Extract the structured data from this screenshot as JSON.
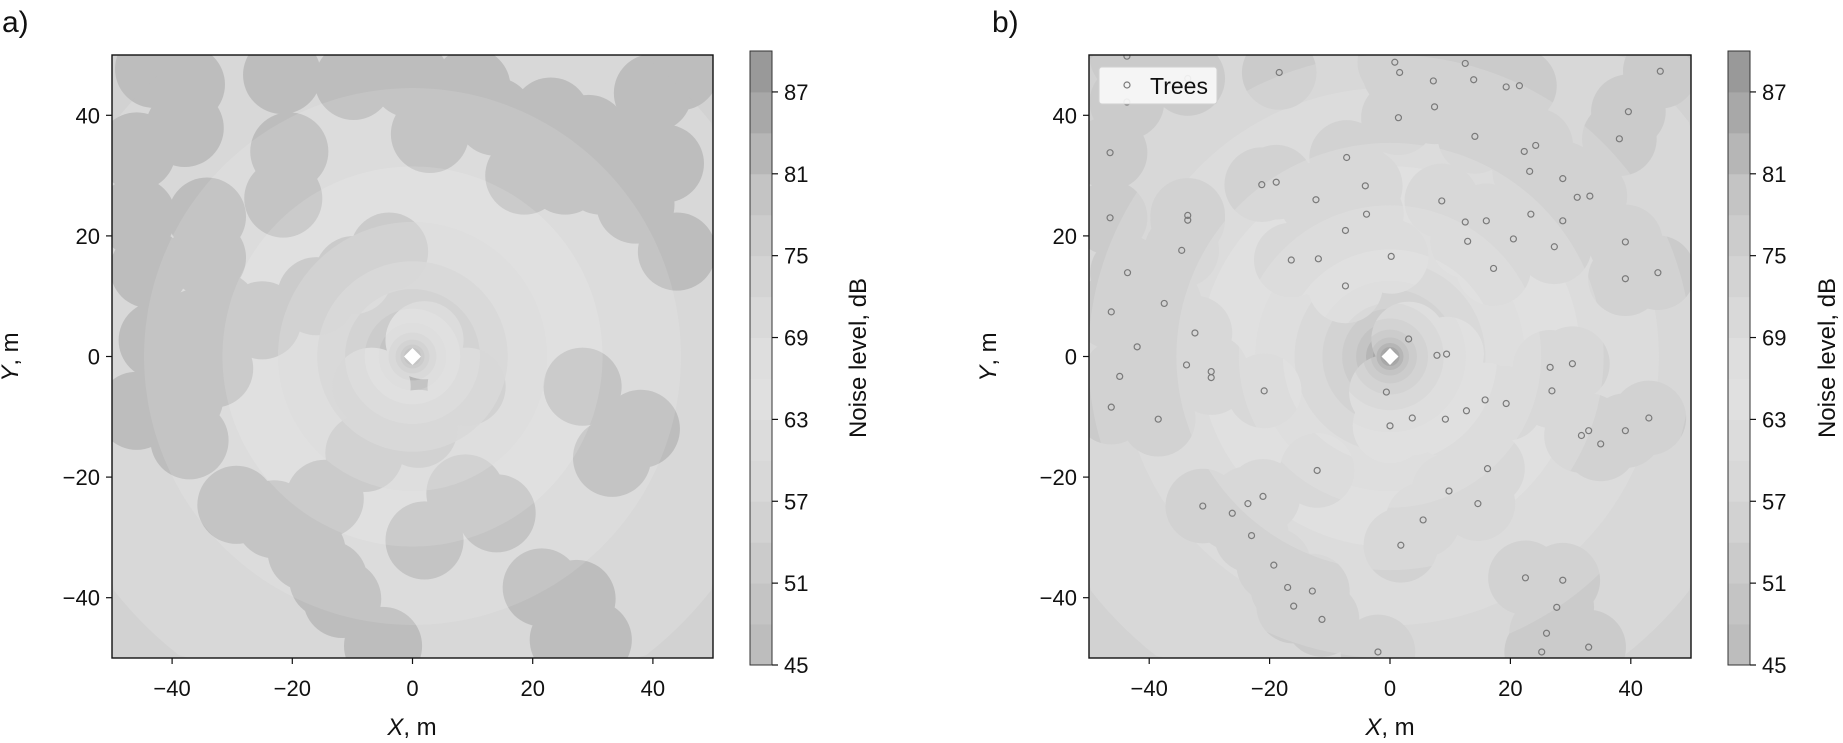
{
  "chart_data": [
    {
      "type": "heatmap",
      "panel_label": "a)",
      "xlabel": {
        "var": "X",
        "unit": ", m"
      },
      "ylabel": {
        "var": "Y",
        "unit": ", m"
      },
      "xlim": [
        -50,
        50
      ],
      "ylim": [
        -50,
        50
      ],
      "xticks": [
        -40,
        -20,
        0,
        20,
        40
      ],
      "yticks": [
        -40,
        -20,
        0,
        20,
        40
      ],
      "colorbar": {
        "label": "Noise level, dB",
        "range": [
          45,
          90
        ],
        "step": 3,
        "ticks": [
          45,
          51,
          57,
          63,
          69,
          75,
          81,
          87
        ],
        "band_colors": [
          "#bdbdbd",
          "#c4c4c4",
          "#cbcbcb",
          "#d2d2d2",
          "#d8d8d8",
          "#dcdcdc",
          "#e0e0e0",
          "#dedede",
          "#d9d9d9",
          "#d3d3d3",
          "#cccccc",
          "#c4c4c4",
          "#b6b6b6",
          "#a8a8a8",
          "#999999"
        ]
      },
      "source": {
        "x": 0,
        "y": 0
      },
      "canopy_attenuation_db": 12,
      "canopy_radius_m": 6.5,
      "canopy_centers": [
        [
          -43,
          47.7
        ],
        [
          -37.7,
          45.1
        ],
        [
          -37.9,
          37.9
        ],
        [
          -21.7,
          46.7
        ],
        [
          -9.8,
          45.7
        ],
        [
          -0.4,
          46.1
        ],
        [
          9.8,
          44.7
        ],
        [
          13.7,
          39.8
        ],
        [
          2.9,
          36.9
        ],
        [
          23,
          39.8
        ],
        [
          29.3,
          36.9
        ],
        [
          40,
          43.7
        ],
        [
          44.5,
          47.3
        ],
        [
          42,
          32
        ],
        [
          33.2,
          34
        ],
        [
          37.1,
          25.2
        ],
        [
          44,
          17.4
        ],
        [
          31.3,
          30
        ],
        [
          25.4,
          30
        ],
        [
          18.6,
          30
        ],
        [
          -45.9,
          34
        ],
        [
          -45.9,
          23.2
        ],
        [
          -43.8,
          14.5
        ],
        [
          -42.4,
          2.7
        ],
        [
          -45.9,
          -9
        ],
        [
          -38,
          -7
        ],
        [
          -34.2,
          16.4
        ],
        [
          -34.2,
          23.2
        ],
        [
          -32.2,
          7.6
        ],
        [
          -37.1,
          -13.9
        ],
        [
          -36,
          4.7
        ],
        [
          -21.5,
          26.2
        ],
        [
          -20.5,
          34
        ],
        [
          -9.8,
          13.5
        ],
        [
          -3.9,
          17.4
        ],
        [
          2,
          2.7
        ],
        [
          9,
          -5
        ],
        [
          -6.8,
          -5
        ],
        [
          1,
          -12
        ],
        [
          28.3,
          -5
        ],
        [
          33.2,
          -16.8
        ],
        [
          38,
          -12
        ],
        [
          2,
          -30.5
        ],
        [
          8.8,
          -22.7
        ],
        [
          14,
          -26
        ],
        [
          -29.3,
          -24.6
        ],
        [
          -23,
          -27
        ],
        [
          -17.6,
          -32.4
        ],
        [
          -14,
          -37
        ],
        [
          -11.7,
          -40.2
        ],
        [
          -4.9,
          -48
        ],
        [
          21.5,
          -38.3
        ],
        [
          27.3,
          -40.2
        ],
        [
          26,
          -47
        ],
        [
          30,
          -47
        ],
        [
          -14.6,
          -23.6
        ],
        [
          -33,
          -2
        ],
        [
          -8,
          -16
        ],
        [
          -25,
          6
        ],
        [
          -16,
          10
        ]
      ]
    },
    {
      "type": "heatmap",
      "panel_label": "b)",
      "xlabel": {
        "var": "X",
        "unit": ", m"
      },
      "ylabel": {
        "var": "Y",
        "unit": ", m"
      },
      "xlim": [
        -50,
        50
      ],
      "ylim": [
        -50,
        50
      ],
      "xticks": [
        -40,
        -20,
        0,
        20,
        40
      ],
      "yticks": [
        -40,
        -20,
        0,
        20,
        40
      ],
      "colorbar": {
        "label": "Noise level, dB",
        "range": [
          45,
          90
        ],
        "step": 3,
        "ticks": [
          45,
          51,
          57,
          63,
          69,
          75,
          81,
          87
        ],
        "band_colors": [
          "#bdbdbd",
          "#c4c4c4",
          "#cbcbcb",
          "#d2d2d2",
          "#d8d8d8",
          "#dcdcdc",
          "#e0e0e0",
          "#dedede",
          "#d9d9d9",
          "#d3d3d3",
          "#cccccc",
          "#c4c4c4",
          "#b6b6b6",
          "#a8a8a8",
          "#999999"
        ]
      },
      "source": {
        "x": 0,
        "y": 0
      },
      "canopy_attenuation_db": 5,
      "canopy_radius_m": 6.2,
      "legend": {
        "label": "Trees",
        "placement": "top-left"
      },
      "trees": [
        [
          -43.7,
          49.8
        ],
        [
          -43.7,
          42.2
        ],
        [
          -33.6,
          46.1
        ],
        [
          -18.4,
          47.1
        ],
        [
          0.8,
          48.8
        ],
        [
          1.6,
          47.1
        ],
        [
          7.2,
          45.7
        ],
        [
          12.5,
          48.6
        ],
        [
          13.9,
          45.9
        ],
        [
          19.3,
          44.7
        ],
        [
          21.5,
          44.9
        ],
        [
          44.9,
          47.3
        ],
        [
          1.4,
          39.6
        ],
        [
          7.4,
          41.4
        ],
        [
          14.1,
          36.5
        ],
        [
          39.6,
          40.6
        ],
        [
          38.1,
          36.1
        ],
        [
          -46.5,
          33.8
        ],
        [
          -7.2,
          33.0
        ],
        [
          -4.1,
          28.3
        ],
        [
          -3.9,
          23.6
        ],
        [
          -7.4,
          20.9
        ],
        [
          24.2,
          35.0
        ],
        [
          22.3,
          34.0
        ],
        [
          23.2,
          30.7
        ],
        [
          28.7,
          29.5
        ],
        [
          31.1,
          26.4
        ],
        [
          33.2,
          26.6
        ],
        [
          28.7,
          22.5
        ],
        [
          -21.3,
          28.5
        ],
        [
          -18.9,
          28.9
        ],
        [
          -12.3,
          26.0
        ],
        [
          8.6,
          25.8
        ],
        [
          12.5,
          22.3
        ],
        [
          16.0,
          22.5
        ],
        [
          12.9,
          19.1
        ],
        [
          20.5,
          19.5
        ],
        [
          23.4,
          23.6
        ],
        [
          -46.5,
          23.0
        ],
        [
          -33.6,
          23.4
        ],
        [
          -33.6,
          22.6
        ],
        [
          -34.6,
          17.6
        ],
        [
          -16.4,
          16.0
        ],
        [
          -11.9,
          16.2
        ],
        [
          0.2,
          16.6
        ],
        [
          -7.4,
          11.7
        ],
        [
          17.2,
          14.6
        ],
        [
          27.3,
          18.2
        ],
        [
          39.1,
          19.0
        ],
        [
          39.1,
          12.9
        ],
        [
          44.5,
          13.9
        ],
        [
          -43.6,
          13.9
        ],
        [
          -46.3,
          7.4
        ],
        [
          -37.5,
          8.8
        ],
        [
          -32.4,
          3.9
        ],
        [
          -42.0,
          1.6
        ],
        [
          -44.9,
          -3.3
        ],
        [
          -46.3,
          -8.4
        ],
        [
          -29.7,
          -2.5
        ],
        [
          -29.7,
          -3.5
        ],
        [
          -33.8,
          -1.4
        ],
        [
          -38.5,
          -10.4
        ],
        [
          -20.9,
          -5.7
        ],
        [
          3.1,
          2.9
        ],
        [
          7.8,
          0.2
        ],
        [
          9.4,
          0.4
        ],
        [
          -0.6,
          -5.9
        ],
        [
          0,
          -11.5
        ],
        [
          3.7,
          -10.2
        ],
        [
          9.2,
          -10.4
        ],
        [
          12.7,
          -9.0
        ],
        [
          15.8,
          -7.2
        ],
        [
          19.3,
          -7.8
        ],
        [
          26.6,
          -1.8
        ],
        [
          30.3,
          -1.2
        ],
        [
          26.9,
          -5.7
        ],
        [
          31.8,
          -13.1
        ],
        [
          33.0,
          -12.3
        ],
        [
          35.0,
          -14.5
        ],
        [
          39.1,
          -12.3
        ],
        [
          43.0,
          -10.2
        ],
        [
          16.2,
          -18.6
        ],
        [
          -12.1,
          -18.9
        ],
        [
          9.8,
          -22.3
        ],
        [
          14.6,
          -24.4
        ],
        [
          5.5,
          -27.1
        ],
        [
          1.8,
          -31.3
        ],
        [
          -31.1,
          -24.8
        ],
        [
          -26.2,
          -26.0
        ],
        [
          -23.6,
          -24.4
        ],
        [
          -21.1,
          -23.2
        ],
        [
          -23.0,
          -29.7
        ],
        [
          -19.3,
          -34.6
        ],
        [
          -17.0,
          -38.3
        ],
        [
          -12.9,
          -38.9
        ],
        [
          -16.0,
          -41.4
        ],
        [
          -11.3,
          -43.6
        ],
        [
          -2.0,
          -49.0
        ],
        [
          22.5,
          -36.7
        ],
        [
          28.7,
          -37.1
        ],
        [
          27.7,
          -41.6
        ],
        [
          26.0,
          -45.9
        ],
        [
          25.2,
          -49.0
        ],
        [
          33.0,
          -48.2
        ]
      ]
    }
  ]
}
